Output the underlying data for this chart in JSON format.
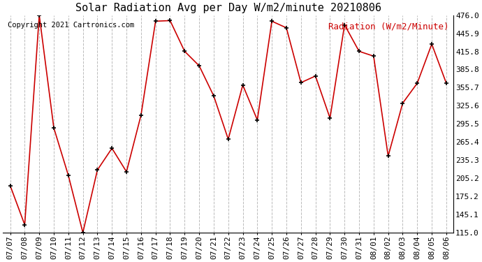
{
  "title": "Solar Radiation Avg per Day W/m2/minute 20210806",
  "ylabel": "Radiation (W/m2/Minute)",
  "copyright": "Copyright 2021 Cartronics.com",
  "dates": [
    "07/07",
    "07/08",
    "07/09",
    "07/10",
    "07/11",
    "07/12",
    "07/13",
    "07/14",
    "07/15",
    "07/16",
    "07/17",
    "07/18",
    "07/19",
    "07/20",
    "07/21",
    "07/22",
    "07/23",
    "07/24",
    "07/25",
    "07/26",
    "07/27",
    "07/28",
    "07/29",
    "07/30",
    "07/31",
    "08/01",
    "08/02",
    "08/03",
    "08/04",
    "08/05",
    "08/06"
  ],
  "values": [
    193.0,
    128.0,
    476.0,
    289.0,
    210.0,
    115.0,
    219.0,
    255.0,
    216.0,
    310.0,
    466.0,
    467.0,
    416.0,
    392.0,
    342.0,
    270.0,
    360.0,
    302.0,
    466.0,
    455.0,
    364.0,
    375.0,
    305.0,
    460.0,
    416.0,
    408.0,
    242.0,
    330.0,
    363.0,
    428.0,
    363.0
  ],
  "ylim": [
    115.0,
    476.0
  ],
  "yticks": [
    476.0,
    445.9,
    415.8,
    385.8,
    355.7,
    325.6,
    295.5,
    265.4,
    235.3,
    205.2,
    175.2,
    145.1,
    115.0
  ],
  "line_color": "#cc0000",
  "marker_color": "black",
  "bg_color": "white",
  "grid_color": "#bbbbbb",
  "title_fontsize": 11,
  "ylabel_fontsize": 9,
  "tick_fontsize": 8,
  "copyright_fontsize": 7.5
}
